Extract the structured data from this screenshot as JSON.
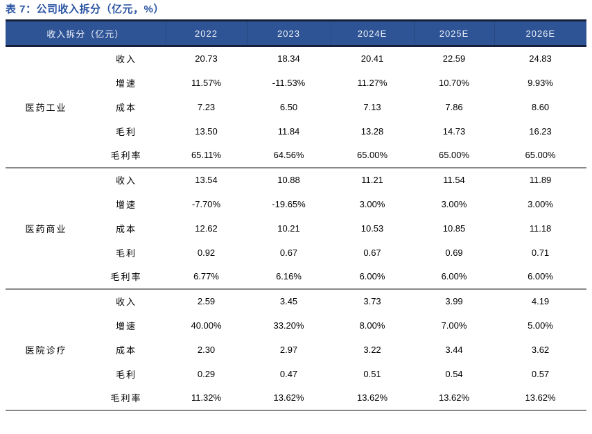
{
  "title": "表 7：公司收入拆分（亿元，%）",
  "colors": {
    "header_bg": "#2F5496",
    "header_text": "#ECF0F8",
    "header_divider": "#27477E",
    "dark_border": "#17203A",
    "section_divider": "#888888",
    "title_color": "#2A55A3",
    "body_text": "#000000",
    "page_bg": "#FFFFFF"
  },
  "table": {
    "header": [
      "收入拆分（亿元）",
      "2022",
      "2023",
      "2024E",
      "2025E",
      "2026E"
    ],
    "sections": [
      {
        "category": "医药工业",
        "rows": [
          {
            "metric": "收入",
            "values": [
              "20.73",
              "18.34",
              "20.41",
              "22.59",
              "24.83"
            ]
          },
          {
            "metric": "增速",
            "values": [
              "11.57%",
              "-11.53%",
              "11.27%",
              "10.70%",
              "9.93%"
            ]
          },
          {
            "metric": "成本",
            "values": [
              "7.23",
              "6.50",
              "7.13",
              "7.86",
              "8.60"
            ]
          },
          {
            "metric": "毛利",
            "values": [
              "13.50",
              "11.84",
              "13.28",
              "14.73",
              "16.23"
            ]
          },
          {
            "metric": "毛利率",
            "values": [
              "65.11%",
              "64.56%",
              "65.00%",
              "65.00%",
              "65.00%"
            ]
          }
        ]
      },
      {
        "category": "医药商业",
        "rows": [
          {
            "metric": "收入",
            "values": [
              "13.54",
              "10.88",
              "11.21",
              "11.54",
              "11.89"
            ]
          },
          {
            "metric": "增速",
            "values": [
              "-7.70%",
              "-19.65%",
              "3.00%",
              "3.00%",
              "3.00%"
            ]
          },
          {
            "metric": "成本",
            "values": [
              "12.62",
              "10.21",
              "10.53",
              "10.85",
              "11.18"
            ]
          },
          {
            "metric": "毛利",
            "values": [
              "0.92",
              "0.67",
              "0.67",
              "0.69",
              "0.71"
            ]
          },
          {
            "metric": "毛利率",
            "values": [
              "6.77%",
              "6.16%",
              "6.00%",
              "6.00%",
              "6.00%"
            ]
          }
        ]
      },
      {
        "category": "医院诊疗",
        "rows": [
          {
            "metric": "收入",
            "values": [
              "2.59",
              "3.45",
              "3.73",
              "3.99",
              "4.19"
            ]
          },
          {
            "metric": "增速",
            "values": [
              "40.00%",
              "33.20%",
              "8.00%",
              "7.00%",
              "5.00%"
            ]
          },
          {
            "metric": "成本",
            "values": [
              "2.30",
              "2.97",
              "3.22",
              "3.44",
              "3.62"
            ]
          },
          {
            "metric": "毛利",
            "values": [
              "0.29",
              "0.47",
              "0.51",
              "0.54",
              "0.57"
            ]
          },
          {
            "metric": "毛利率",
            "values": [
              "11.32%",
              "13.62%",
              "13.62%",
              "13.62%",
              "13.62%"
            ]
          }
        ]
      }
    ]
  }
}
